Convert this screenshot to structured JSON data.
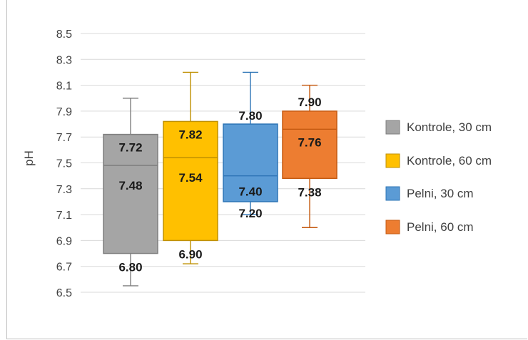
{
  "chart_data": {
    "type": "box",
    "ylabel": "pH",
    "ylim": [
      6.5,
      8.5
    ],
    "yticks": [
      6.5,
      6.7,
      6.9,
      7.1,
      7.3,
      7.5,
      7.7,
      7.9,
      8.1,
      8.3,
      8.5
    ],
    "ytick_labels": [
      "6.5",
      "6.7",
      "6.9",
      "7.1",
      "7.3",
      "7.5",
      "7.7",
      "7.9",
      "8.1",
      "8.3",
      "8.5"
    ],
    "grid": true,
    "legend_position": "right",
    "series": [
      {
        "name": "Kontrole, 30 cm",
        "color": "#a5a5a5",
        "edge": "#7f7f7f",
        "whisker_low": 6.55,
        "q1": 6.8,
        "median": 7.48,
        "q3": 7.72,
        "whisker_high": 8.0,
        "labels": {
          "q3": "7.72",
          "median": "7.48",
          "q1": "6.80"
        }
      },
      {
        "name": "Kontrole, 60 cm",
        "color": "#ffc000",
        "edge": "#bf9000",
        "whisker_low": 6.72,
        "q1": 6.9,
        "median": 7.54,
        "q3": 7.82,
        "whisker_high": 8.2,
        "labels": {
          "q3": "7.82",
          "median": "7.54",
          "q1": "6.90"
        }
      },
      {
        "name": "Pelni, 30 cm",
        "color": "#5b9bd5",
        "edge": "#2e75b6",
        "whisker_low": 7.1,
        "q1": 7.2,
        "median": 7.4,
        "q3": 7.8,
        "whisker_high": 8.2,
        "labels": {
          "q3": "7.80",
          "median": "7.40",
          "q1": "7.20"
        }
      },
      {
        "name": "Pelni, 60 cm",
        "color": "#ed7d31",
        "edge": "#c55a11",
        "whisker_low": 7.0,
        "q1": 7.38,
        "median": 7.76,
        "q3": 7.9,
        "whisker_high": 8.1,
        "labels": {
          "q3": "7.90",
          "median": "7.76",
          "q1": "7.38"
        }
      }
    ]
  }
}
